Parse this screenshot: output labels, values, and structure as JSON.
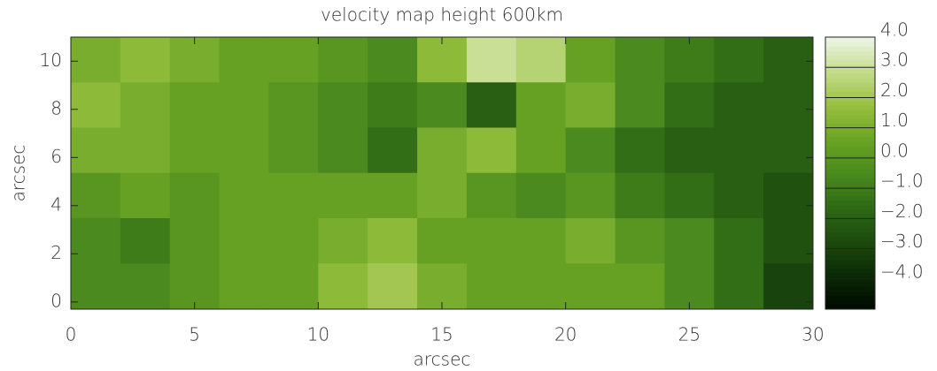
{
  "chart_data": {
    "type": "heatmap",
    "title": "velocity map height 600km",
    "x_label": "arcsec",
    "y_label": "arcsec",
    "x": [
      1,
      3,
      5,
      7,
      9,
      11,
      13,
      15,
      17,
      19,
      21,
      23,
      25,
      27,
      29
    ],
    "y": [
      10.06,
      8.18,
      6.3,
      4.42,
      2.54,
      0.66
    ],
    "z": [
      [
        1.0,
        1.5,
        1.0,
        0.5,
        0.5,
        0.0,
        -0.5,
        1.5,
        3.0,
        2.5,
        0.5,
        -0.5,
        -1.0,
        -1.5,
        -2.0
      ],
      [
        1.5,
        1.0,
        0.5,
        0.5,
        0.0,
        -0.5,
        -1.0,
        -0.5,
        -2.0,
        0.5,
        1.0,
        -0.5,
        -1.5,
        -2.0,
        -2.0
      ],
      [
        1.0,
        1.0,
        0.5,
        0.5,
        0.0,
        -0.5,
        -1.5,
        1.0,
        1.5,
        0.5,
        -0.5,
        -1.5,
        -2.0,
        -2.0,
        -2.0
      ],
      [
        0.0,
        0.5,
        0.0,
        0.5,
        0.5,
        0.5,
        0.5,
        1.0,
        0.0,
        -0.5,
        0.0,
        -1.0,
        -1.5,
        -2.0,
        -2.5
      ],
      [
        -0.5,
        -1.0,
        0.0,
        0.5,
        0.5,
        1.0,
        1.5,
        0.5,
        0.5,
        0.5,
        1.0,
        0.0,
        -0.5,
        -1.5,
        -2.5
      ],
      [
        -0.5,
        -0.5,
        0.0,
        0.5,
        0.5,
        1.5,
        2.0,
        1.0,
        0.5,
        0.5,
        0.5,
        0.5,
        -0.5,
        -1.5,
        -3.0
      ]
    ],
    "xlim": [
      0,
      30
    ],
    "ylim": [
      -0.3,
      11
    ],
    "xticks": [
      0,
      5,
      10,
      15,
      20,
      25,
      30
    ],
    "yticks": [
      0,
      2,
      4,
      6,
      8,
      10
    ],
    "clim": [
      -5,
      4
    ],
    "cticks": [
      {
        "value": 4,
        "label": "4.0"
      },
      {
        "value": 3,
        "label": "3.0"
      },
      {
        "value": 2,
        "label": "2.0"
      },
      {
        "value": 1,
        "label": "1.0"
      },
      {
        "value": 0,
        "label": "0.0"
      },
      {
        "value": -1,
        "label": "−1.0"
      },
      {
        "value": -2,
        "label": "−2.0"
      },
      {
        "value": -3,
        "label": "−3.0"
      },
      {
        "value": -4,
        "label": "−4.0"
      }
    ],
    "colorscale": [
      "#000800",
      "#0a2a05",
      "#1c4a0e",
      "#2e6a14",
      "#4a8a1e",
      "#6aa424",
      "#98c040",
      "#c4dc8c",
      "#eef6e8"
    ]
  }
}
